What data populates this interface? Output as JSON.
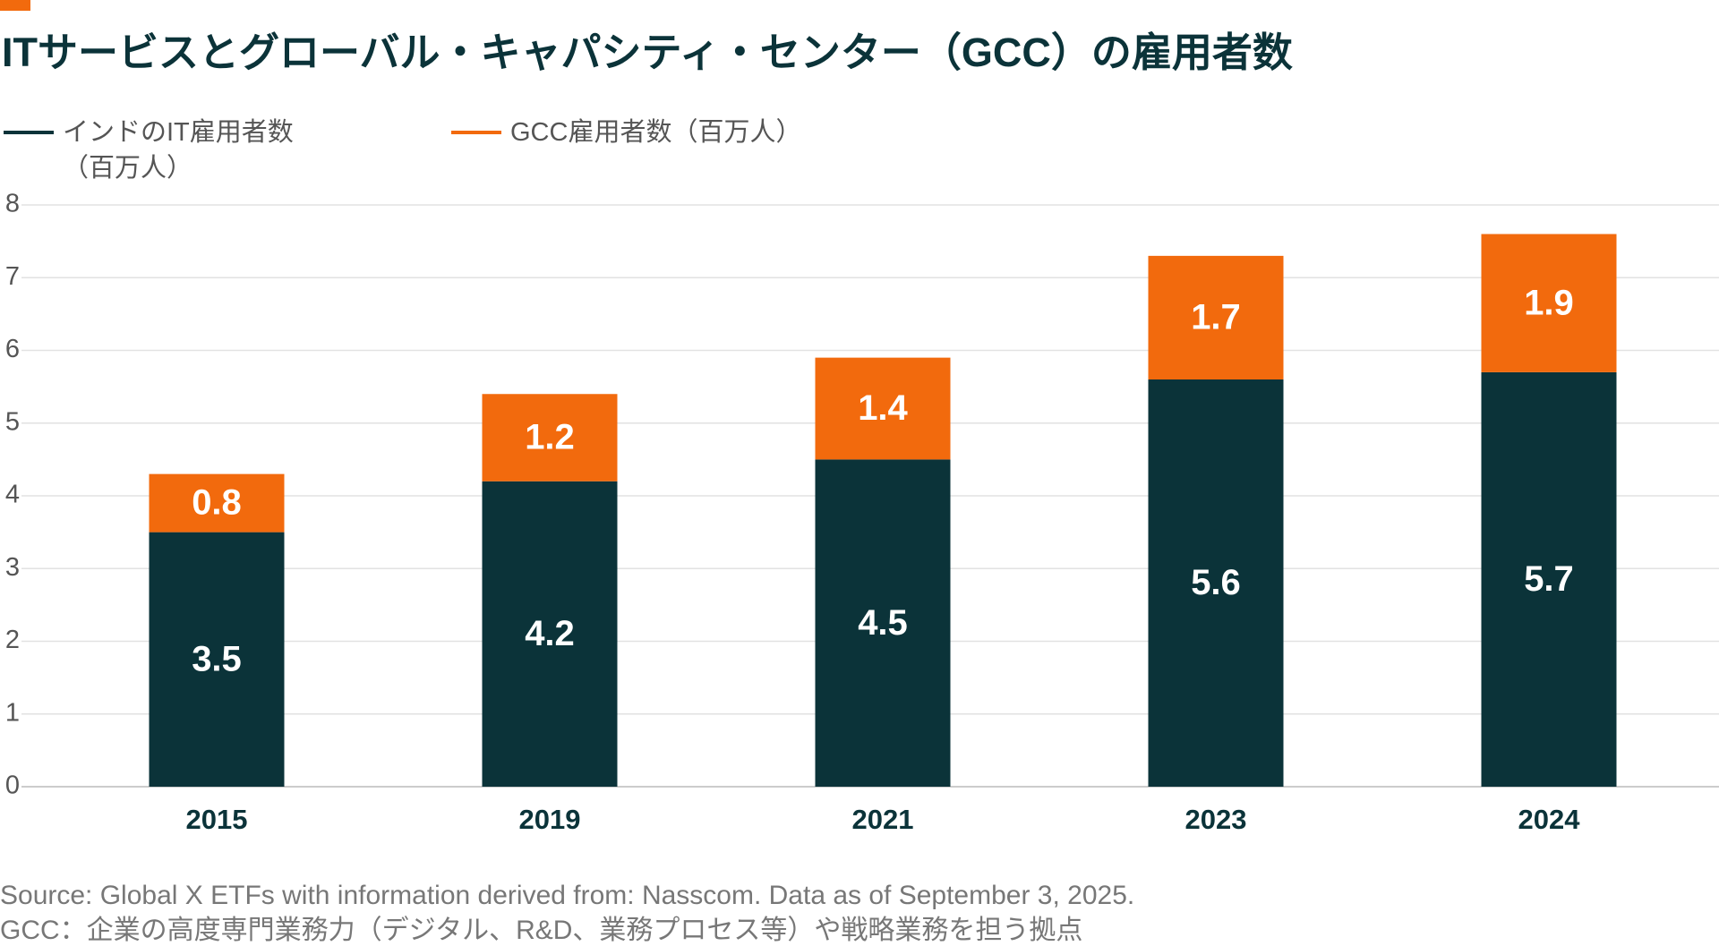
{
  "chart_data": {
    "type": "stacked-bar",
    "title": "ITサービスとグローバル・キャパシティ・センター（GCC）の雇用者数",
    "categories": [
      "2015",
      "2019",
      "2021",
      "2023",
      "2024"
    ],
    "series": [
      {
        "name": "インドのIT雇用者数（百万人）",
        "color": "#0b3339",
        "values": [
          3.5,
          4.2,
          4.5,
          5.6,
          5.7
        ]
      },
      {
        "name": "GCC雇用者数（百万人）",
        "color": "#f26a0d",
        "values": [
          0.8,
          1.2,
          1.4,
          1.7,
          1.9
        ]
      }
    ],
    "ylim": [
      0,
      8
    ],
    "yticks": [
      0,
      1,
      2,
      3,
      4,
      5,
      6,
      7,
      8
    ],
    "grid": true,
    "source": "Source: Global X ETFs with information derived from: Nasscom. Data as of September 3, 2025.",
    "note": "GCC：企業の高度専門業務力（デジタル、R&D、業務プロセス等）や戦略業務を担う拠点"
  }
}
